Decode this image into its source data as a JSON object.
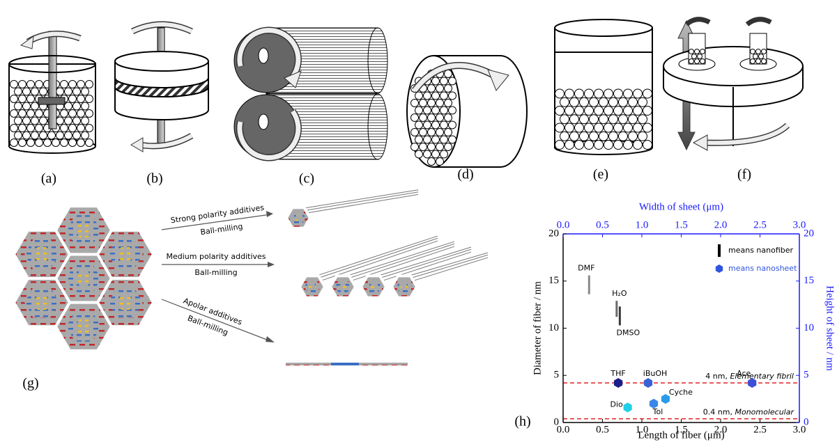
{
  "panel_labels": [
    "(a)",
    "(b)",
    "(c)",
    "(d)",
    "(e)",
    "(f)",
    "(g)",
    "(h)"
  ],
  "diagram_g": {
    "arrows": [
      {
        "label": "Strong polarity additives",
        "sublabel": "Ball-milling"
      },
      {
        "label": "Medium polarity additives",
        "sublabel": "Ball-milling"
      },
      {
        "label": "Apolar additives",
        "sublabel": "Ball-milling"
      }
    ]
  },
  "chart_data": {
    "type": "scatter",
    "xlabel": "Length of fiber (μm)",
    "x2label": "Width of sheet (μm)",
    "ylabel": "Diameter of fiber / nm",
    "y2label": "Height of sheet / nm",
    "xlim": [
      0,
      3
    ],
    "x2lim": [
      0,
      3
    ],
    "ylim": [
      0,
      20
    ],
    "y2lim": [
      0,
      20
    ],
    "xticks": [
      {
        "value": 0,
        "label": "0.0"
      },
      0.5,
      {
        "value": 1,
        "label": "1.0"
      },
      1.5,
      {
        "value": 2,
        "label": "2.0"
      },
      2.5,
      {
        "value": 3,
        "label": "3.0"
      }
    ],
    "x2ticks": [
      {
        "value": 0,
        "label": "0.0"
      },
      0.5,
      {
        "value": 1,
        "label": "1.0"
      },
      1.5,
      {
        "value": 2,
        "label": "2.0"
      },
      2.5,
      {
        "value": 3,
        "label": "3.0"
      }
    ],
    "yticks": [
      0,
      5,
      10,
      15,
      20
    ],
    "y2ticks": [
      0,
      5,
      10,
      15,
      20
    ],
    "axis_color": "#000000",
    "axis2_color": "#1a1aff",
    "series": [
      {
        "name": "means nanofiber",
        "color": "#000000",
        "marker": "bar",
        "labels": [
          "DMF",
          "H₂O",
          "DMSO"
        ],
        "x": [
          0.33,
          0.68,
          0.72
        ],
        "ymin": [
          13.6,
          11.2,
          10.3
        ],
        "ymax": [
          15.6,
          12.9,
          12.3
        ],
        "colors": [
          "#8a8a8a",
          "#6a6a6a",
          "#3a3a3a"
        ]
      },
      {
        "name": "means nanosheet",
        "color": "#2f55e0",
        "marker": "hexagon",
        "axis": "y2",
        "labels": [
          "THF",
          "iBuOH",
          "Ace",
          "Cyche",
          "Tol",
          "Dio"
        ],
        "x": [
          0.7,
          1.08,
          2.4,
          1.3,
          1.15,
          0.82
        ],
        "values": [
          4.2,
          4.2,
          4.2,
          2.5,
          2.0,
          1.6
        ],
        "colors": [
          "#1b1f8a",
          "#3a62d4",
          "#3b4fd8",
          "#2b9be8",
          "#3b86ea",
          "#21cfe6"
        ]
      }
    ],
    "reference_lines": [
      {
        "value": 4.2,
        "label": "4 nm,",
        "note": "Elementary fibril"
      },
      {
        "value": 0.4,
        "label": "0.4 nm,",
        "note": "Monomolecular"
      }
    ],
    "reference_color": "#e02020"
  }
}
